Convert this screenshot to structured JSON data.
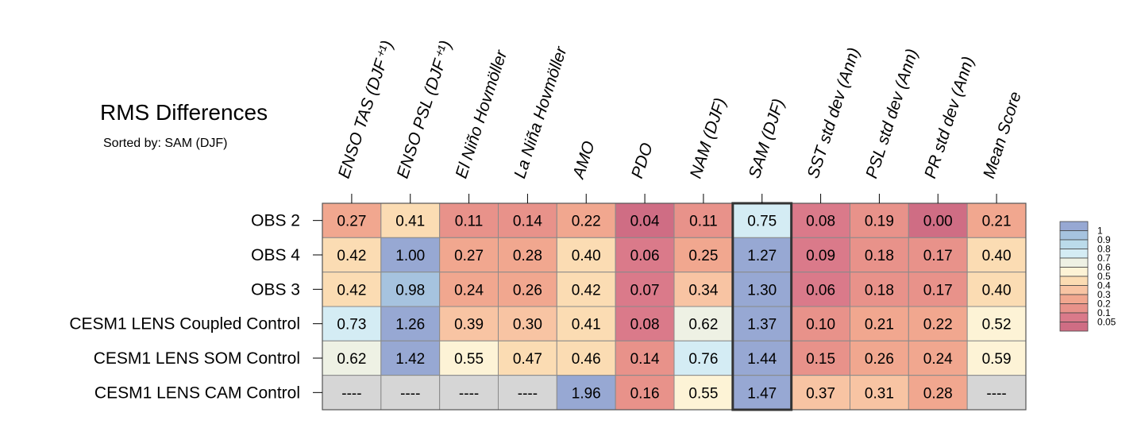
{
  "title": "RMS Differences",
  "subtitle": "Sorted by: SAM (DJF)",
  "chart_data": {
    "type": "heatmap",
    "title": "RMS Differences",
    "subtitle": "Sorted by: SAM (DJF)",
    "columns": [
      "ENSO TAS (DJF⁺¹)",
      "ENSO PSL (DJF⁺¹)",
      "El Niño Hovmöller",
      "La Niña Hovmöller",
      "AMO",
      "PDO",
      "NAM (DJF)",
      "SAM (DJF)",
      "SST std dev (Ann)",
      "PSL std dev (Ann)",
      "PR std dev (Ann)",
      "Mean Score"
    ],
    "rows": [
      "OBS 2",
      "OBS 4",
      "OBS 3",
      "CESM1 LENS Coupled Control",
      "CESM1 LENS SOM Control",
      "CESM1 LENS CAM Control"
    ],
    "values": [
      [
        "0.27",
        "0.41",
        "0.11",
        "0.14",
        "0.22",
        "0.04",
        "0.11",
        "0.75",
        "0.08",
        "0.19",
        "0.00",
        "0.21"
      ],
      [
        "0.42",
        "1.00",
        "0.27",
        "0.28",
        "0.40",
        "0.06",
        "0.25",
        "1.27",
        "0.09",
        "0.18",
        "0.17",
        "0.40"
      ],
      [
        "0.42",
        "0.98",
        "0.24",
        "0.26",
        "0.42",
        "0.07",
        "0.34",
        "1.30",
        "0.06",
        "0.18",
        "0.17",
        "0.40"
      ],
      [
        "0.73",
        "1.26",
        "0.39",
        "0.30",
        "0.41",
        "0.08",
        "0.62",
        "1.37",
        "0.10",
        "0.21",
        "0.22",
        "0.52"
      ],
      [
        "0.62",
        "1.42",
        "0.55",
        "0.47",
        "0.46",
        "0.14",
        "0.76",
        "1.44",
        "0.15",
        "0.26",
        "0.24",
        "0.59"
      ],
      [
        "----",
        "----",
        "----",
        "----",
        "1.96",
        "0.16",
        "0.55",
        "1.47",
        "0.37",
        "0.31",
        "0.28",
        "----"
      ]
    ],
    "missing_label": "----",
    "missing_color": "#d6d6d6",
    "highlighted_column": "SAM (DJF)",
    "colorbar": {
      "position": "right",
      "labels": [
        "1",
        "0.9",
        "0.8",
        "0.7",
        "0.6",
        "0.5",
        "0.4",
        "0.3",
        "0.2",
        "0.1",
        "0.05"
      ],
      "colors_top_to_bottom": [
        "#97a8d3",
        "#a6c3df",
        "#bbdbea",
        "#d4ecf4",
        "#eef1e4",
        "#fdf3d6",
        "#fbdcb3",
        "#f8c4a3",
        "#f1a78f",
        "#e8928a",
        "#da7a8a",
        "#cf6d84"
      ]
    }
  }
}
